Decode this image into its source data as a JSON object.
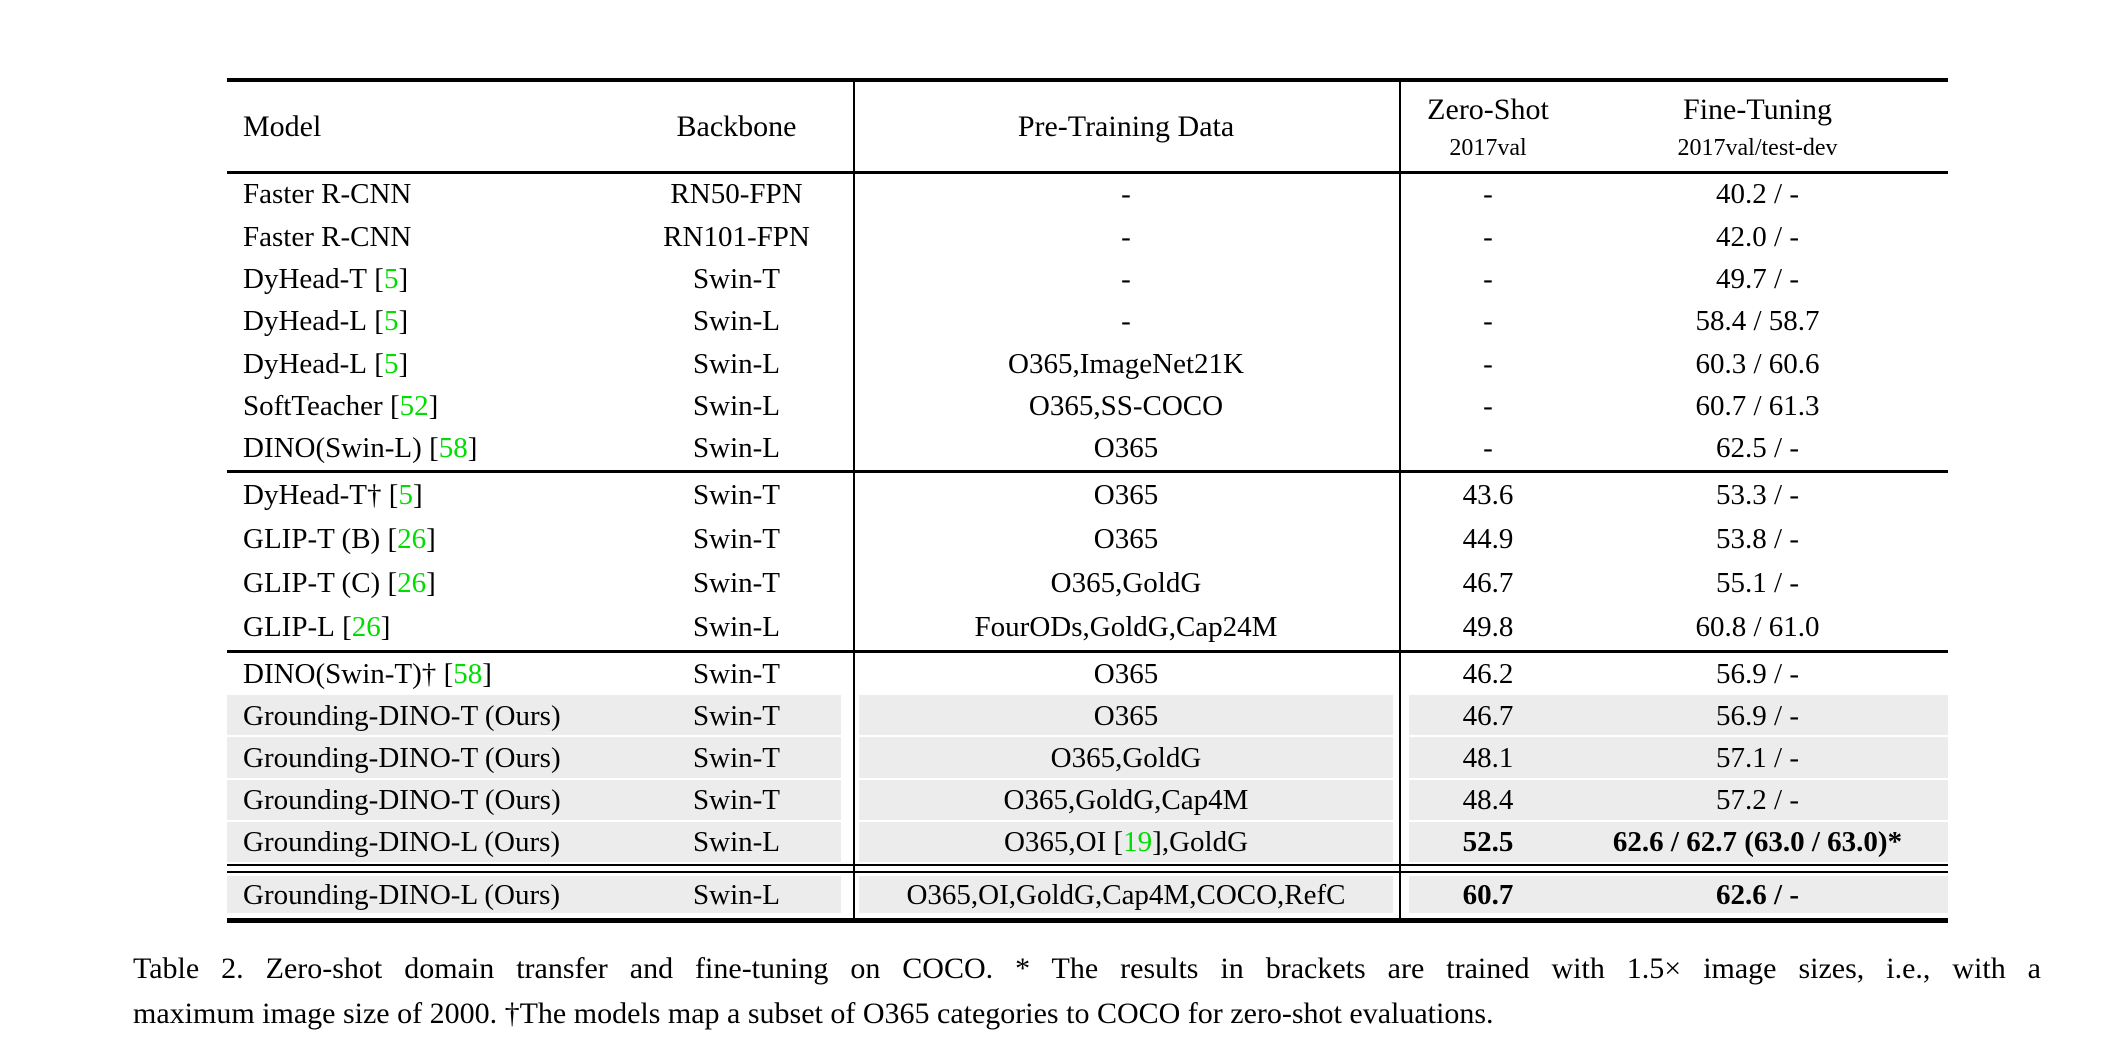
{
  "colors": {
    "citation_green": "#00dd00",
    "row_shade": "#ececec",
    "rule_black": "#000000"
  },
  "table": {
    "headers": {
      "model": "Model",
      "backbone": "Backbone",
      "pretrain": "Pre-Training Data",
      "zeroshot_line1": "Zero-Shot",
      "zeroshot_line2": "2017val",
      "finetune_line1": "Fine-Tuning",
      "finetune_line2": "2017val/test-dev"
    },
    "sections": [
      {
        "rows": [
          {
            "model": "Faster R-CNN",
            "backbone": "RN50-FPN",
            "pretrain": "-",
            "zs": "-",
            "ft": "40.2 / -"
          },
          {
            "model": "Faster R-CNN",
            "backbone": "RN101-FPN",
            "pretrain": "-",
            "zs": "-",
            "ft": "42.0 / -"
          },
          {
            "model": "DyHead-T",
            "cite": "5",
            "backbone": "Swin-T",
            "pretrain": "-",
            "zs": "-",
            "ft": "49.7 / -"
          },
          {
            "model": "DyHead-L",
            "cite": "5",
            "backbone": "Swin-L",
            "pretrain": "-",
            "zs": "-",
            "ft": "58.4 / 58.7"
          },
          {
            "model": "DyHead-L",
            "cite": "5",
            "backbone": "Swin-L",
            "pretrain": "O365,ImageNet21K",
            "zs": "-",
            "ft": "60.3 / 60.6"
          },
          {
            "model": "SoftTeacher",
            "cite": "52",
            "backbone": "Swin-L",
            "pretrain": "O365,SS-COCO",
            "zs": "-",
            "ft": "60.7 / 61.3"
          },
          {
            "model": "DINO(Swin-L)",
            "cite": "58",
            "backbone": "Swin-L",
            "pretrain": "O365",
            "zs": "-",
            "ft": "62.5 / -"
          }
        ]
      },
      {
        "rows": [
          {
            "model": "DyHead-T†",
            "cite": "5",
            "backbone": "Swin-T",
            "pretrain": "O365",
            "zs": "43.6",
            "ft": "53.3 / -"
          },
          {
            "model": "GLIP-T (B)",
            "cite": "26",
            "backbone": "Swin-T",
            "pretrain": "O365",
            "zs": "44.9",
            "ft": "53.8 / -"
          },
          {
            "model": "GLIP-T (C)",
            "cite": "26",
            "backbone": "Swin-T",
            "pretrain": "O365,GoldG",
            "zs": "46.7",
            "ft": "55.1 / -"
          },
          {
            "model": "GLIP-L",
            "cite": "26",
            "backbone": "Swin-L",
            "pretrain": "FourODs,GoldG,Cap24M",
            "zs": "49.8",
            "ft": "60.8 / 61.0"
          }
        ]
      },
      {
        "rows": [
          {
            "model": "DINO(Swin-T)†",
            "cite": "58",
            "backbone": "Swin-T",
            "pretrain": "O365",
            "zs": "46.2",
            "ft": "56.9 / -"
          },
          {
            "model": "Grounding-DINO-T (Ours)",
            "backbone": "Swin-T",
            "pretrain": "O365",
            "zs": "46.7",
            "ft": "56.9 / -",
            "shaded": true
          },
          {
            "model": "Grounding-DINO-T (Ours)",
            "backbone": "Swin-T",
            "pretrain": "O365,GoldG",
            "zs": "48.1",
            "ft": "57.1 / -",
            "shaded": true
          },
          {
            "model": "Grounding-DINO-T (Ours)",
            "backbone": "Swin-T",
            "pretrain": "O365,GoldG,Cap4M",
            "zs": "48.4",
            "ft": "57.2 / -",
            "shaded": true
          },
          {
            "model": "Grounding-DINO-L (Ours)",
            "backbone": "Swin-L",
            "pretrain_pre": "O365,OI [",
            "pretrain_cite": "19",
            "pretrain_post": "],GoldG",
            "zs": "52.5",
            "ft": "62.6 / 62.7 (63.0 / 63.0)*",
            "shaded": true,
            "bold_zs": true,
            "bold_ft": true
          }
        ]
      },
      {
        "rows": [
          {
            "model": "Grounding-DINO-L (Ours)",
            "backbone": "Swin-L",
            "pretrain": "O365,OI,GoldG,Cap4M,COCO,RefC",
            "zs": "60.7",
            "ft": "62.6 / -",
            "shaded": true,
            "bold_zs": true,
            "bold_ft": true
          }
        ]
      }
    ]
  },
  "caption": {
    "line1": "Table 2. Zero-shot domain transfer and fine-tuning on COCO. * The results in brackets are trained with 1.5× image sizes, i.e., with a",
    "line2": "maximum image size of 2000. †The models map a subset of O365 categories to COCO for zero-shot evaluations."
  }
}
